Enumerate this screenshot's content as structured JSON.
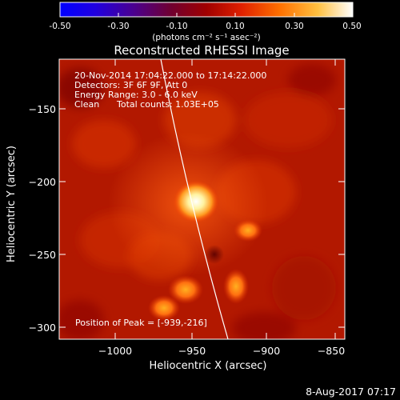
{
  "title": "Reconstructed RHESSI Image",
  "colorbar": {
    "ticks": [
      "-0.50",
      "-0.30",
      "-0.10",
      "0.10",
      "0.30",
      "0.50"
    ],
    "unit_label": "(photons cm⁻² s⁻¹ asec⁻²)",
    "range": [
      -0.5,
      0.5
    ],
    "colormap": "fire"
  },
  "info": {
    "time": "20-Nov-2014 17:04:22.000 to 17:14:22.000",
    "detectors": "Detectors: 3F 6F 9F, Att 0",
    "energy": "Energy Range: 3.0 - 6.0 keV",
    "method": "Clean",
    "counts": "Total counts: 1.03E+05",
    "peak": "Position of Peak = [-939,-216]"
  },
  "x_axis": {
    "label": "Heliocentric X (arcsec)",
    "ticks": [
      "−1000",
      "−950",
      "−900",
      "−850"
    ]
  },
  "y_axis": {
    "label": "Heliocentric Y (arcsec)",
    "ticks": [
      "−150",
      "−200",
      "−250",
      "−300"
    ]
  },
  "footer_date": "8-Aug-2017 07:17"
}
